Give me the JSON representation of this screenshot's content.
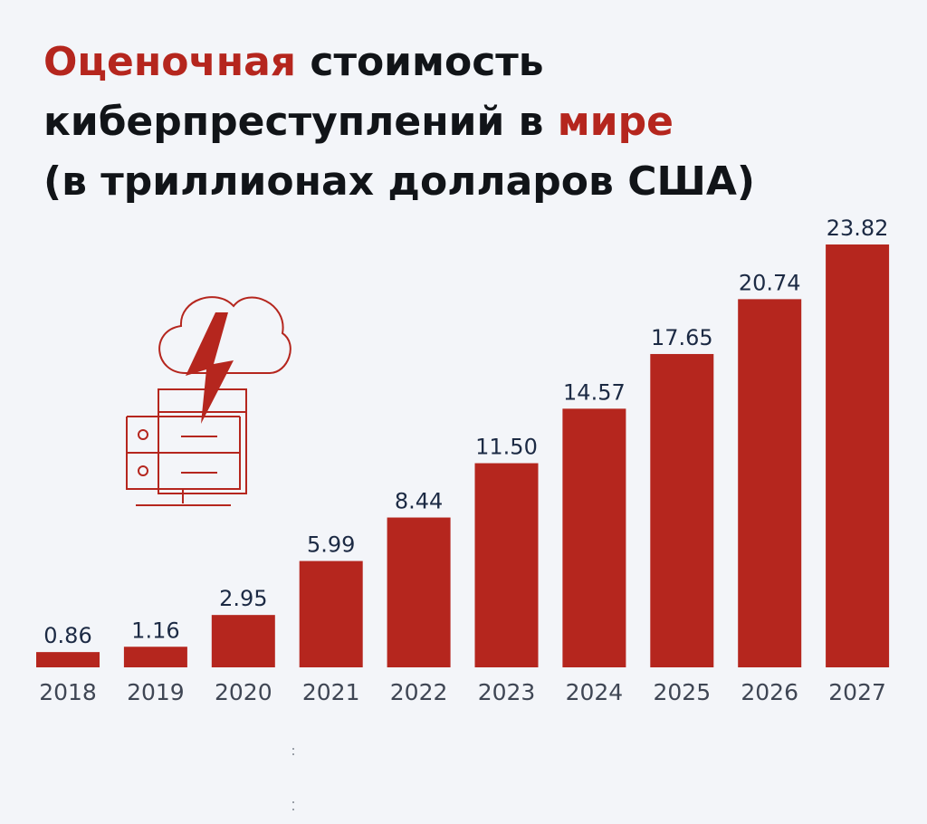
{
  "title": {
    "line1_accent": "Оценочная",
    "line1_rest": " стоимость",
    "line2_main": "киберпреступлений в ",
    "line2_accent": "мире",
    "line3": "(в триллионах долларов США)"
  },
  "colors": {
    "bar": "#b5261e",
    "accent": "#b5261e",
    "background": "#f3f5f9",
    "value_text": "#1c2a44"
  },
  "icon": "cloud-lightning-server-icon",
  "chart_data": {
    "type": "bar",
    "categories": [
      "2018",
      "2019",
      "2020",
      "2021",
      "2022",
      "2023",
      "2024",
      "2025",
      "2026",
      "2027"
    ],
    "values": [
      0.86,
      1.16,
      2.95,
      5.99,
      8.44,
      11.5,
      14.57,
      17.65,
      20.74,
      23.82
    ],
    "value_labels": [
      "0.86",
      "1.16",
      "2.95",
      "5.99",
      "8.44",
      "11.50",
      "14.57",
      "17.65",
      "20.74",
      "23.82"
    ],
    "title": "Оценочная стоимость киберпреступлений в мире (в триллионах долларов США)",
    "xlabel": "",
    "ylabel": "",
    "ylim": [
      0,
      23.82
    ],
    "grid": false,
    "legend": "none"
  }
}
